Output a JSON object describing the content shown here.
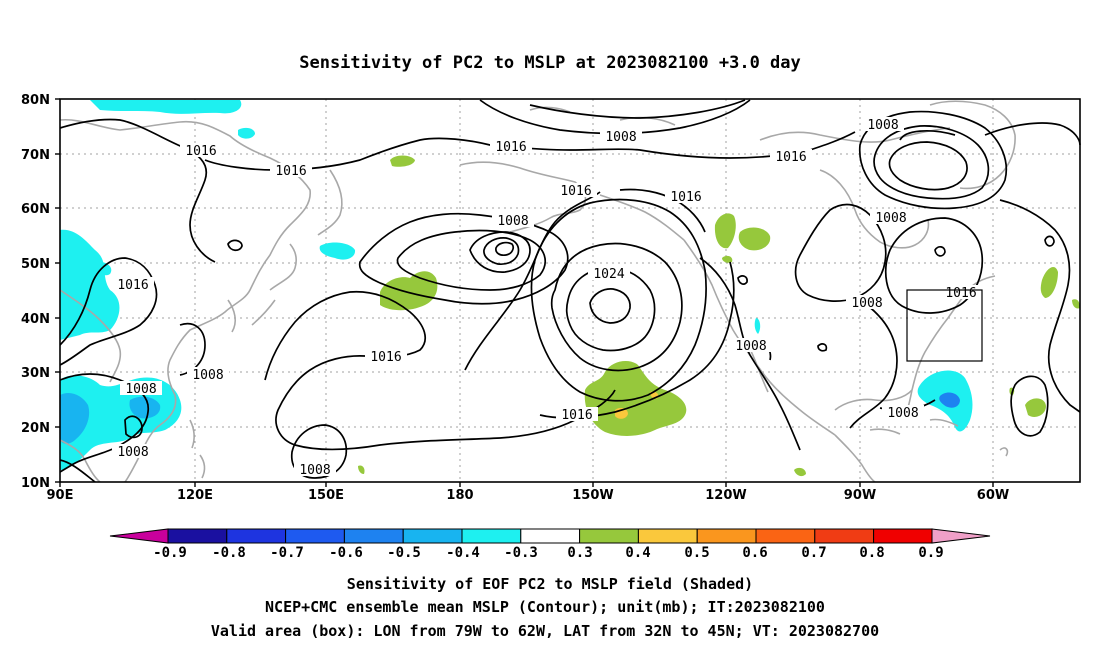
{
  "title": "Sensitivity of PC2 to MSLP at 2023082100 +3.0 day",
  "map": {
    "lat_ticks": [
      "80N",
      "70N",
      "60N",
      "50N",
      "40N",
      "30N",
      "20N",
      "10N"
    ],
    "lon_ticks": [
      "90E",
      "120E",
      "150E",
      "180",
      "150W",
      "120W",
      "90W",
      "60W"
    ],
    "contour_labels": [
      "1016",
      "1016",
      "1016",
      "1016",
      "1016",
      "1016",
      "1016",
      "1016",
      "1016",
      "1008",
      "1008",
      "1008",
      "1008",
      "1008",
      "1008",
      "1008",
      "1008",
      "1008",
      "1008",
      "1008",
      "1024"
    ],
    "valid_box": {
      "lon": [
        -79,
        -62
      ],
      "lat": [
        32,
        45
      ]
    }
  },
  "colorbar": {
    "labels": [
      "-0.9",
      "-0.8",
      "-0.7",
      "-0.6",
      "-0.5",
      "-0.4",
      "-0.3",
      "0.3",
      "0.4",
      "0.5",
      "0.6",
      "0.7",
      "0.8",
      "0.9"
    ],
    "colors": [
      "#1a10a0",
      "#1e34e0",
      "#1e5af0",
      "#1e82f0",
      "#18b4f0",
      "#1ef0f0",
      "#ffffff",
      "#96c83c",
      "#fac83c",
      "#fa961e",
      "#fa6414",
      "#f03c14",
      "#f00000"
    ],
    "low_end": "#c8009c",
    "high_end": "#f0a0c8"
  },
  "caption": {
    "line1": "Sensitivity of EOF PC2 to MSLP field (Shaded)",
    "line2": "NCEP+CMC ensemble mean MSLP (Contour); unit(mb); IT:2023082100",
    "line3": "Valid area (box): LON from 79W to 62W, LAT from 32N to 45N; VT: 2023082700"
  }
}
